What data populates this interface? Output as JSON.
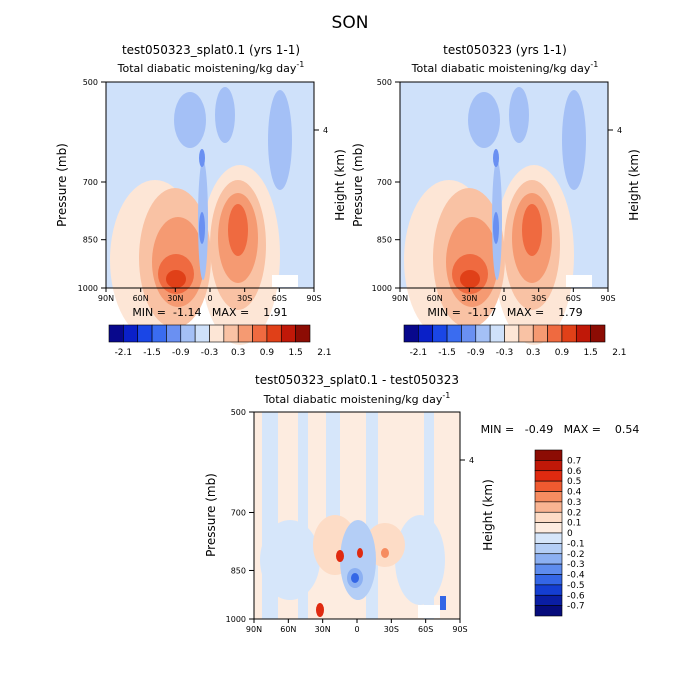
{
  "figure_title": "SON",
  "chart_data": [
    {
      "type": "heatmap",
      "title": "test050323_splat0.1 (yrs 1-1)",
      "subtitle": "Total diabatic moistening/kg day",
      "subtitle_exp": "-1",
      "ylabel": "Pressure (mb)",
      "ylabel_right": "Height (km)",
      "x_ticks": [
        "90N",
        "60N",
        "30N",
        "0",
        "30S",
        "60S",
        "90S"
      ],
      "y_ticks": [
        "500",
        "700",
        "850",
        "1000"
      ],
      "right_ticks": [
        "4"
      ],
      "ylim": [
        1000,
        500
      ],
      "stats_text": "MIN =  -1.14   MAX =    1.91",
      "min": -1.14,
      "max": 1.91,
      "colorbar_labels": [
        "-2.1",
        "-1.5",
        "-0.9",
        "-0.3",
        "0.3",
        "0.9",
        "1.5",
        "2.1"
      ]
    },
    {
      "type": "heatmap",
      "title": "test050323 (yrs 1-1)",
      "subtitle": "Total diabatic moistening/kg day",
      "subtitle_exp": "-1",
      "ylabel": "Pressure (mb)",
      "ylabel_right": "Height (km)",
      "x_ticks": [
        "90N",
        "60N",
        "30N",
        "0",
        "30S",
        "60S",
        "90S"
      ],
      "y_ticks": [
        "500",
        "700",
        "850",
        "1000"
      ],
      "right_ticks": [
        "4"
      ],
      "ylim": [
        1000,
        500
      ],
      "stats_text": "MIN =  -1.17   MAX =    1.79",
      "min": -1.17,
      "max": 1.79,
      "colorbar_labels": [
        "-2.1",
        "-1.5",
        "-0.9",
        "-0.3",
        "0.3",
        "0.9",
        "1.5",
        "2.1"
      ]
    },
    {
      "type": "heatmap",
      "title": "test050323_splat0.1 - test050323",
      "subtitle": "Total diabatic moistening/kg day",
      "subtitle_exp": "-1",
      "ylabel": "Pressure (mb)",
      "ylabel_right": "Height (km)",
      "x_ticks": [
        "90N",
        "60N",
        "30N",
        "0",
        "30S",
        "60S",
        "90S"
      ],
      "y_ticks": [
        "500",
        "700",
        "850",
        "1000"
      ],
      "right_ticks": [
        "4"
      ],
      "ylim": [
        1000,
        500
      ],
      "stats_text": "MIN =   -0.49   MAX =    0.54",
      "min": -0.49,
      "max": 0.54,
      "colorbar_labels": [
        "0.7",
        "0.6",
        "0.5",
        "0.4",
        "0.3",
        "0.2",
        "0.1",
        "0",
        "-0.1",
        "-0.2",
        "-0.3",
        "-0.4",
        "-0.5",
        "-0.6",
        "-0.7"
      ]
    }
  ],
  "colors": {
    "abs_scale": [
      "#08088c",
      "#0a20c8",
      "#1a46e6",
      "#3a6cf0",
      "#6a90f2",
      "#a4c0f6",
      "#cfe1fa",
      "#fde6d6",
      "#f9c2a4",
      "#f59a72",
      "#ef6a40",
      "#e04018",
      "#c01808",
      "#8c0c04"
    ],
    "diff_scale": [
      "#8c0c04",
      "#c01808",
      "#e02a10",
      "#ef5a30",
      "#f68c60",
      "#f9b492",
      "#fddcc6",
      "#fdece0",
      "#d6e6fa",
      "#b4cef6",
      "#8cb0f2",
      "#5e8cee",
      "#3466e6",
      "#143ed2",
      "#0a1ea4",
      "#060c7c"
    ]
  }
}
